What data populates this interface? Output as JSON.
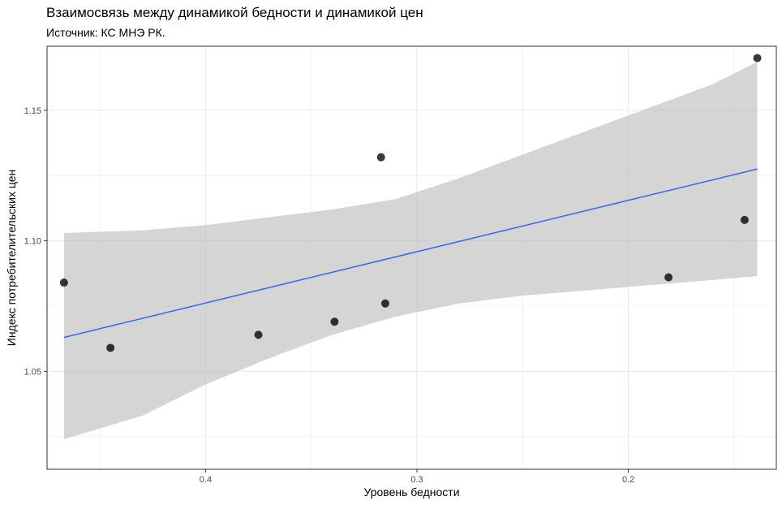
{
  "chart_data": {
    "type": "scatter",
    "title": "Взаимосвязь между динамикой бедности и динамикой цен",
    "subtitle": "Источник: КС МНЭ РК.",
    "xlabel": "Уровень бедности",
    "ylabel": "Индекс потребителительских цен",
    "x_reversed": true,
    "xlim": [
      0.475,
      0.13
    ],
    "ylim": [
      1.0125,
      1.1745
    ],
    "x_ticks": [
      0.4,
      0.3,
      0.2
    ],
    "x_tick_labels": [
      "0.4",
      "0.3",
      "0.2"
    ],
    "y_ticks": [
      1.05,
      1.1,
      1.15
    ],
    "y_tick_labels": [
      "1.05",
      "1.10",
      "1.15"
    ],
    "grid": true,
    "points": [
      {
        "x": 0.467,
        "y": 1.084
      },
      {
        "x": 0.445,
        "y": 1.059
      },
      {
        "x": 0.375,
        "y": 1.064
      },
      {
        "x": 0.339,
        "y": 1.069
      },
      {
        "x": 0.317,
        "y": 1.132
      },
      {
        "x": 0.315,
        "y": 1.076
      },
      {
        "x": 0.181,
        "y": 1.086
      },
      {
        "x": 0.145,
        "y": 1.108
      },
      {
        "x": 0.139,
        "y": 1.17
      }
    ],
    "fit": {
      "method": "linear",
      "line": [
        [
          0.467,
          1.063
        ],
        [
          0.139,
          1.1275
        ]
      ],
      "band": [
        {
          "x": 0.467,
          "lower": 1.024,
          "upper": 1.103
        },
        {
          "x": 0.43,
          "lower": 1.033,
          "upper": 1.104
        },
        {
          "x": 0.4,
          "lower": 1.045,
          "upper": 1.106
        },
        {
          "x": 0.37,
          "lower": 1.055,
          "upper": 1.109
        },
        {
          "x": 0.34,
          "lower": 1.064,
          "upper": 1.112
        },
        {
          "x": 0.31,
          "lower": 1.071,
          "upper": 1.116
        },
        {
          "x": 0.28,
          "lower": 1.076,
          "upper": 1.124
        },
        {
          "x": 0.25,
          "lower": 1.079,
          "upper": 1.133
        },
        {
          "x": 0.22,
          "lower": 1.081,
          "upper": 1.142
        },
        {
          "x": 0.19,
          "lower": 1.083,
          "upper": 1.151
        },
        {
          "x": 0.16,
          "lower": 1.085,
          "upper": 1.16
        },
        {
          "x": 0.139,
          "lower": 1.0865,
          "upper": 1.1685
        }
      ]
    },
    "colors": {
      "point": "#000000",
      "line": "#3366ff",
      "band": "#bfbfbf",
      "grid": "#ebebeb",
      "border": "#333333"
    }
  }
}
